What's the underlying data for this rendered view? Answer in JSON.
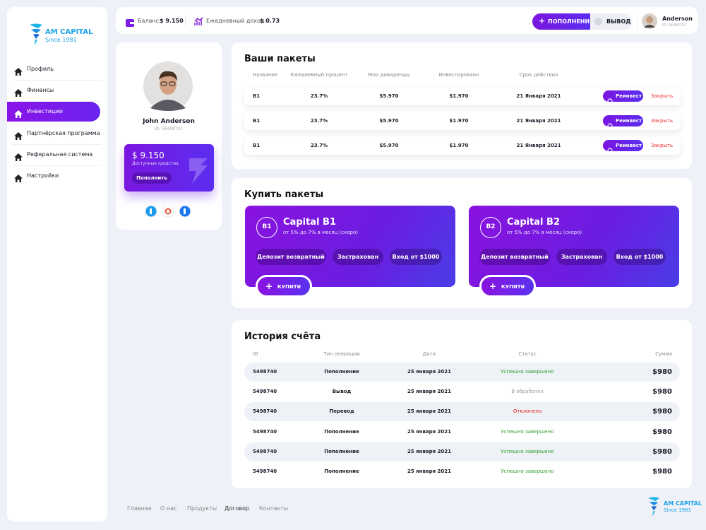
{
  "logo": {
    "name": "AM CAPITAL",
    "since": "Since 1981"
  },
  "nav": [
    {
      "label": "Профиль",
      "active": false
    },
    {
      "label": "Финансы",
      "active": false
    },
    {
      "label": "Инвестиции",
      "active": true
    },
    {
      "label": "Партнёрская программа",
      "active": false
    },
    {
      "label": "Реферальная система",
      "active": false
    },
    {
      "label": "Настройки",
      "active": false
    }
  ],
  "header": {
    "balance_label": "Баланс:",
    "balance": "$ 9.150",
    "income_label": "Ежедневный доход:",
    "income": "$ 0.73",
    "deposit_button": "ПОПОЛНЕНИЕ",
    "withdraw_button": "ВЫВОД",
    "user_name": "Anderson",
    "user_id": "ID: 56498701"
  },
  "profile": {
    "name": "John Anderson",
    "id": "ID: 56498701",
    "balance": "$ 9.150",
    "balance_caption": "Доступные средства",
    "top_up_button": "Пополнить"
  },
  "packages": {
    "title": "Ваши пакеты",
    "columns": [
      "Название",
      "Ежедневный процент",
      "Мои дивиденды",
      "Инвестировано",
      "Срок действия"
    ],
    "rows": [
      [
        "B1",
        "23.7%",
        "$5.970",
        "$1.970",
        "21 Января 2021"
      ],
      [
        "B1",
        "23.7%",
        "$5.970",
        "$1.970",
        "21 Января 2021"
      ],
      [
        "B1",
        "23.7%",
        "$5.970",
        "$1.970",
        "21 Января 2021"
      ]
    ],
    "reinvest_button": "Реинвест",
    "close_button": "Закрыть"
  },
  "buy": {
    "title": "Купить пакеты",
    "cards": [
      {
        "badge": "B1",
        "name": "Capital B1",
        "subtitle": "от 5% до 7% в месяц (скоро)",
        "tags": [
          "Депозит возвратный",
          "Застрахован",
          "Вход от $1000"
        ],
        "button": "КУПИТЬ"
      },
      {
        "badge": "B2",
        "name": "Capital B2",
        "subtitle": "от 5% до 7% в месяц (скоро)",
        "tags": [
          "Депозит возвратный",
          "Застрахован",
          "Вход от $1000"
        ],
        "button": "КУПИТЬ"
      }
    ]
  },
  "history": {
    "title": "История счёта",
    "columns": [
      "ID",
      "Тип операции",
      "Дата",
      "Статус",
      "Сумма"
    ],
    "rows": [
      {
        "cells": [
          "5498740",
          "Пополнение",
          "25 января 2021",
          "Успешно завершено",
          "$980"
        ],
        "status_color": "#2ea02e"
      },
      {
        "cells": [
          "5498740",
          "Вывод",
          "25 января 2021",
          "В обработке",
          "$980"
        ],
        "status_color": "#9a9a9a"
      },
      {
        "cells": [
          "5498740",
          "Перевод",
          "25 января 2021",
          "Отклонено",
          "$980"
        ],
        "status_color": "#e0201d"
      },
      {
        "cells": [
          "5498740",
          "Пополнение",
          "25 января 2021",
          "Успешно завершено",
          "$980"
        ],
        "status_color": "#2ea02e"
      },
      {
        "cells": [
          "5498740",
          "Пополнение",
          "25 января 2021",
          "Успешно завершено",
          "$980"
        ],
        "status_color": "#2ea02e"
      },
      {
        "cells": [
          "5498740",
          "Пополнение",
          "25 января 2021",
          "Успешно завершено",
          "$980"
        ],
        "status_color": "#2ea02e"
      }
    ]
  },
  "footer": {
    "links": [
      "Главная",
      "О нас",
      "Продукты",
      "Договор",
      "Контакты"
    ]
  }
}
